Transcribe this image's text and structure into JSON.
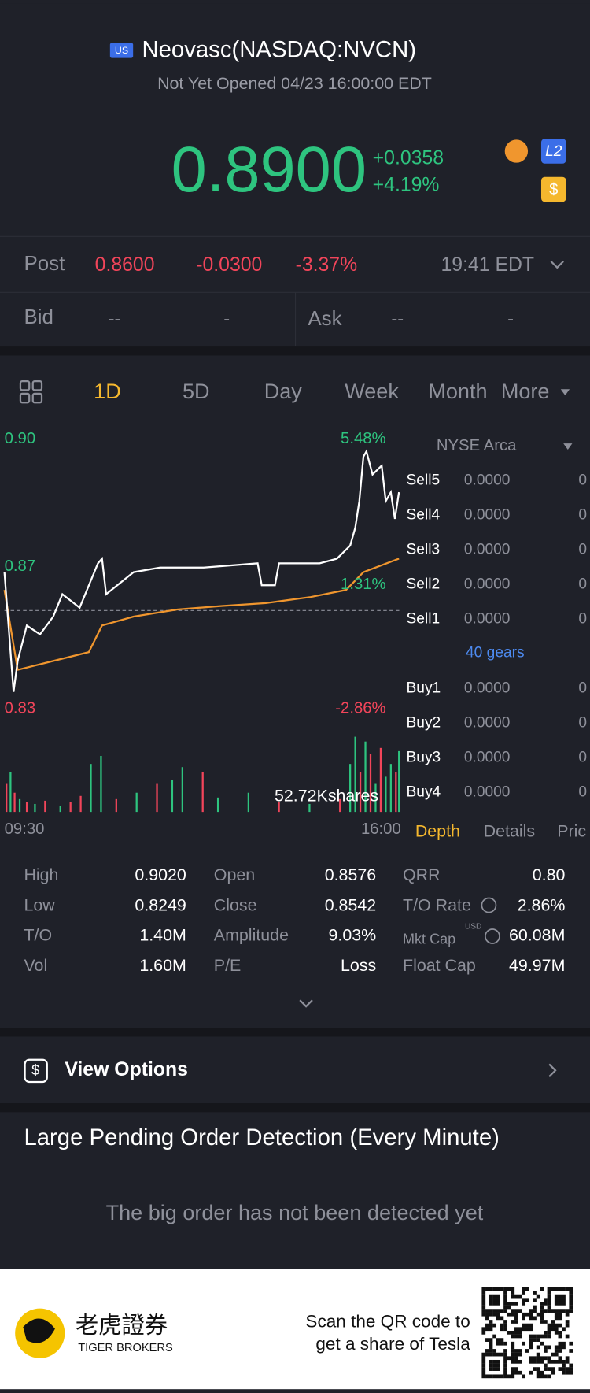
{
  "header": {
    "market_badge": "US",
    "title": "Neovasc(NASDAQ:NVCN)",
    "status": "Not Yet Opened 04/23 16:00:00 EDT",
    "price": "0.8900",
    "change": "+0.0358",
    "change_pct": "+4.19%",
    "icon_l2": "L2",
    "icon_currency": "$"
  },
  "post": {
    "label": "Post",
    "price": "0.8600",
    "change": "-0.0300",
    "change_pct": "-3.37%",
    "time": "19:41 EDT"
  },
  "quote": {
    "bid_label": "Bid",
    "bid_price": "--",
    "bid_size": "-",
    "ask_label": "Ask",
    "ask_price": "--",
    "ask_size": "-"
  },
  "tabs": [
    "1D",
    "5D",
    "Day",
    "Week",
    "Month",
    "More"
  ],
  "chart_data": {
    "type": "line",
    "series": [
      {
        "color": "#ffffff",
        "x": [
          0,
          4,
          9,
          13,
          22,
          35,
          48,
          57,
          74,
          92,
          96,
          100,
          127,
          153,
          196,
          249,
          253,
          266,
          270,
          310,
          327,
          340,
          345,
          349,
          353,
          356,
          362,
          371,
          375,
          380,
          384,
          388
        ],
        "values": [
          0.865,
          0.85,
          0.8313,
          0.84,
          0.85,
          0.8475,
          0.8525,
          0.8588,
          0.855,
          0.8675,
          0.8688,
          0.8588,
          0.865,
          0.8663,
          0.8663,
          0.8675,
          0.8613,
          0.8613,
          0.8675,
          0.8675,
          0.8688,
          0.8725,
          0.8775,
          0.885,
          0.8975,
          0.899,
          0.8925,
          0.895,
          0.885,
          0.8875,
          0.88,
          0.8875
        ]
      },
      {
        "color": "#f0962e",
        "x": [
          0,
          13,
          48,
          83,
          96,
          127,
          170,
          214,
          257,
          301,
          336,
          353,
          388
        ],
        "values": [
          0.86,
          0.8375,
          0.84,
          0.8425,
          0.85,
          0.8525,
          0.8545,
          0.8555,
          0.8563,
          0.858,
          0.86,
          0.865,
          0.8688
        ]
      }
    ],
    "xlim": [
      0,
      390
    ],
    "xticks": [
      {
        "value": 0,
        "label": "09:30"
      },
      {
        "value": 390,
        "label": "16:00"
      }
    ],
    "ylim": [
      0.83,
      0.9
    ],
    "yticks": [
      {
        "value": 0.9,
        "label": "0.90"
      },
      0.87,
      0.83
    ],
    "y2lim": [
      -2.86,
      5.48
    ],
    "y2ticks": [
      {
        "value": 5.48,
        "label": "5.48%"
      },
      {
        "value": 1.31,
        "label": "1.31%"
      },
      {
        "value": -2.86,
        "label": "-2.86%"
      }
    ],
    "reference_line": 0.8542,
    "volume": {
      "x": [
        2,
        6,
        10,
        15,
        22,
        30,
        40,
        55,
        65,
        75,
        85,
        95,
        110,
        130,
        150,
        165,
        175,
        195,
        210,
        240,
        270,
        300,
        330,
        340,
        345,
        350,
        355,
        360,
        365,
        370,
        375,
        380,
        385,
        388
      ],
      "values": [
        18,
        25,
        12,
        8,
        6,
        5,
        7,
        4,
        6,
        10,
        30,
        35,
        8,
        12,
        18,
        20,
        28,
        25,
        9,
        12,
        6,
        5,
        8,
        30,
        47,
        25,
        44,
        36,
        18,
        40,
        22,
        30,
        25,
        38
      ],
      "colors": [
        "#f2455a",
        "#2ec47f",
        "#f2455a",
        "#2ec47f",
        "#f2455a",
        "#2ec47f",
        "#f2455a",
        "#2ec47f",
        "#f2455a",
        "#f2455a",
        "#2ec47f",
        "#2ec47f",
        "#f2455a",
        "#2ec47f",
        "#f2455a",
        "#2ec47f",
        "#2ec47f",
        "#f2455a",
        "#2ec47f",
        "#2ec47f",
        "#f2455a",
        "#2ec47f",
        "#f2455a",
        "#2ec47f",
        "#2ec47f",
        "#f2455a",
        "#2ec47f",
        "#f2455a",
        "#2ec47f",
        "#f2455a",
        "#2ec47f",
        "#2ec47f",
        "#f2455a",
        "#2ec47f"
      ],
      "ylim": [
        0,
        52.72
      ],
      "yticks": [
        {
          "value": 52.72,
          "label": "52.72Kshares"
        }
      ]
    }
  },
  "depth": {
    "exchange": "NYSE Arca",
    "gears": "40 gears",
    "sell": [
      [
        "Sell5",
        "0.0000",
        "0"
      ],
      [
        "Sell4",
        "0.0000",
        "0"
      ],
      [
        "Sell3",
        "0.0000",
        "0"
      ],
      [
        "Sell2",
        "0.0000",
        "0"
      ],
      [
        "Sell1",
        "0.0000",
        "0"
      ]
    ],
    "buy": [
      [
        "Buy1",
        "0.0000",
        "0"
      ],
      [
        "Buy2",
        "0.0000",
        "0"
      ],
      [
        "Buy3",
        "0.0000",
        "0"
      ],
      [
        "Buy4",
        "0.0000",
        "0"
      ]
    ]
  },
  "bottom_tabs": [
    "Depth",
    "Details",
    "Pric"
  ],
  "stats": [
    [
      [
        "High",
        "0.9020"
      ],
      [
        "Open",
        "0.8576"
      ],
      [
        "QRR",
        "0.80"
      ]
    ],
    [
      [
        "Low",
        "0.8249"
      ],
      [
        "Close",
        "0.8542"
      ],
      [
        "T/O Rate",
        "2.86%"
      ]
    ],
    [
      [
        "T/O",
        "1.40M"
      ],
      [
        "Amplitude",
        "9.03%"
      ],
      [
        "Mkt Cap",
        "60.08M"
      ]
    ],
    [
      [
        "Vol",
        "1.60M"
      ],
      [
        "P/E",
        "Loss"
      ],
      [
        "Float Cap",
        "49.97M"
      ]
    ]
  ],
  "mkt_cap_unit": "USD",
  "options": "View Options",
  "large_order": {
    "title": "Large Pending Order Detection (Every Minute)",
    "empty": "The big order has not been detected yet"
  },
  "footer": {
    "brand_cn": "老虎證券",
    "brand_en": "TIGER BROKERS",
    "cta_line1": "Scan the QR code to",
    "cta_line2": "get a share of Tesla"
  }
}
